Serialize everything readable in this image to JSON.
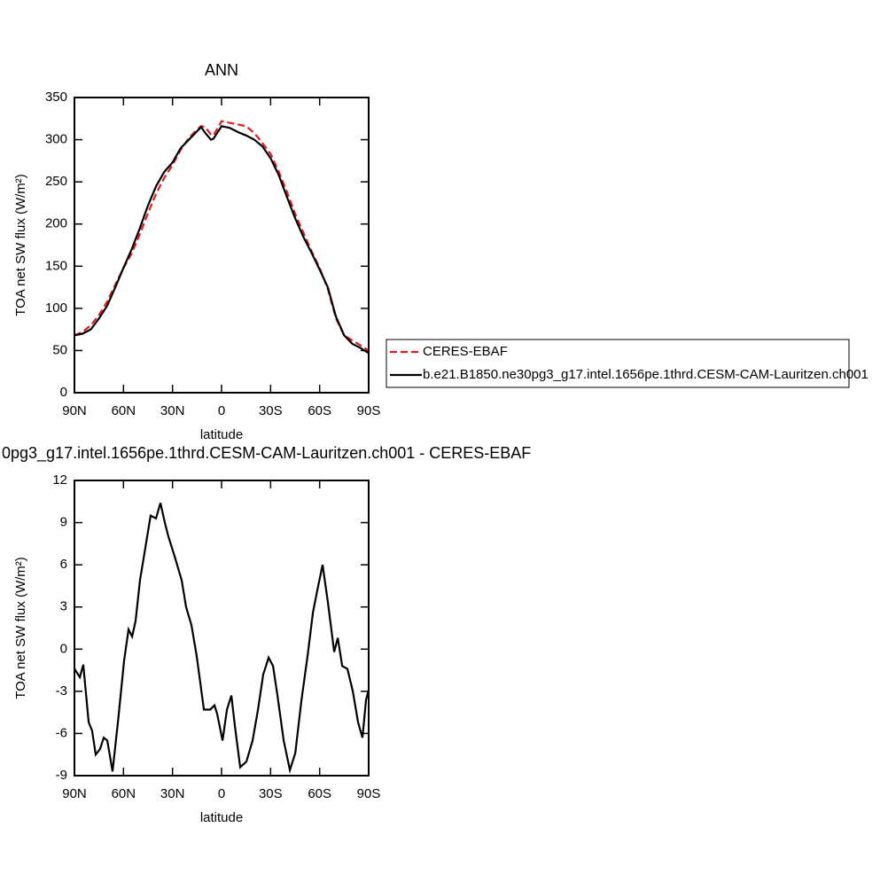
{
  "chart_data": [
    {
      "type": "line",
      "title": "ANN",
      "xlabel": "latitude",
      "ylabel": "TOA net SW flux (W/m²)",
      "x": [
        90,
        85,
        80,
        75,
        70,
        65,
        60,
        55,
        50,
        45,
        40,
        35,
        30,
        25,
        20,
        15,
        12.5,
        10,
        6.5,
        5,
        0,
        -5,
        -10,
        -15,
        -20,
        -25,
        -30,
        -35,
        -40,
        -45,
        -50,
        -55,
        -60,
        -65,
        -70,
        -75,
        -80,
        -85,
        -90
      ],
      "series": [
        {
          "name": "CERES-EBAF",
          "color": "#e41a1c",
          "dashed": true,
          "values": [
            68,
            72,
            80,
            92,
            108,
            128,
            148,
            165,
            188,
            213,
            236,
            255,
            270,
            288,
            302,
            312,
            316,
            315,
            306,
            305,
            322,
            320,
            318,
            316,
            308,
            296,
            283,
            262,
            238,
            212,
            190,
            168,
            148,
            123,
            88,
            68,
            62,
            56,
            50
          ]
        },
        {
          "name": "b.e21.B1850.ne30pg3_g17.intel.1656pe.1thrd.CESM-CAM-Lauritzen.ch001",
          "color": "#000000",
          "dashed": false,
          "values": [
            68,
            70,
            75,
            88,
            103,
            125,
            148,
            170,
            195,
            222,
            245,
            262,
            273,
            290,
            300,
            310,
            315,
            308,
            300,
            301,
            316,
            314,
            309,
            305,
            300,
            292,
            278,
            258,
            232,
            207,
            185,
            166,
            146,
            125,
            90,
            68,
            58,
            53,
            47
          ]
        }
      ],
      "xlim": [
        90,
        -90
      ],
      "xticks": [
        {
          "value": 90,
          "label": "90N"
        },
        {
          "value": 60,
          "label": "60N"
        },
        {
          "value": 30,
          "label": "30N"
        },
        0,
        {
          "value": -30,
          "label": "30S"
        },
        {
          "value": -60,
          "label": "60S"
        },
        {
          "value": -90,
          "label": "90S"
        }
      ],
      "ylim": [
        0,
        350
      ],
      "yticks": [
        0,
        50,
        100,
        150,
        200,
        250,
        300,
        350
      ],
      "grid": false,
      "legend": "right"
    },
    {
      "type": "line",
      "title": "0pg3_g17.intel.1656pe.1thrd.CESM-CAM-Lauritzen.ch001 - CERES-EBAF",
      "xlabel": "latitude",
      "ylabel": "TOA net SW flux (W/m²)",
      "x": [
        90,
        86.7,
        84.6,
        81.3,
        79.2,
        77,
        74.3,
        72.1,
        69.9,
        66.7,
        63.4,
        59.6,
        56.9,
        54.7,
        52.6,
        49.9,
        47.2,
        43.4,
        40.1,
        37.4,
        34.7,
        32.5,
        28.7,
        24.4,
        21.7,
        18.4,
        15.2,
        10.8,
        7,
        4.3,
        2.7,
        -0.6,
        -3.3,
        -6,
        -8.2,
        -11.4,
        -15.2,
        -19,
        -22.3,
        -25.5,
        -28.8,
        -31.5,
        -34.2,
        -38,
        -41.8,
        -45.1,
        -48.8,
        -52.6,
        -55.9,
        -58.6,
        -61.8,
        -65.1,
        -68.9,
        -71.1,
        -73.8,
        -77,
        -80.3,
        -83.5,
        -86.2,
        -88.4,
        -90
      ],
      "series": [
        {
          "color": "#000000",
          "dashed": false,
          "values": [
            -1.4,
            -2.0,
            -1.1,
            -5.2,
            -5.8,
            -7.5,
            -7.1,
            -6.3,
            -6.5,
            -8.7,
            -5.2,
            -0.8,
            1.4,
            0.9,
            2.0,
            4.9,
            6.8,
            9.5,
            9.3,
            10.4,
            9.0,
            8.0,
            6.6,
            4.9,
            3.0,
            1.7,
            -0.5,
            -4.3,
            -4.3,
            -4.0,
            -4.6,
            -6.5,
            -4.3,
            -3.3,
            -5.5,
            -8.4,
            -8.0,
            -6.5,
            -4.3,
            -1.8,
            -0.6,
            -1.2,
            -3.3,
            -6.5,
            -8.6,
            -7.4,
            -3.7,
            -0.5,
            2.6,
            4.2,
            6.0,
            3.3,
            -0.2,
            0.8,
            -1.2,
            -1.4,
            -3.0,
            -5.2,
            -6.3,
            -3.6,
            -2.9
          ]
        }
      ],
      "xlim": [
        90,
        -90
      ],
      "xticks": [
        {
          "value": 90,
          "label": "90N"
        },
        {
          "value": 60,
          "label": "60N"
        },
        {
          "value": 30,
          "label": "30N"
        },
        0,
        {
          "value": -30,
          "label": "30S"
        },
        {
          "value": -60,
          "label": "60S"
        },
        {
          "value": -90,
          "label": "90S"
        }
      ],
      "ylim": [
        -9,
        12
      ],
      "yticks": [
        -9,
        -6,
        -3,
        0,
        3,
        6,
        9,
        12
      ],
      "grid": false
    }
  ]
}
